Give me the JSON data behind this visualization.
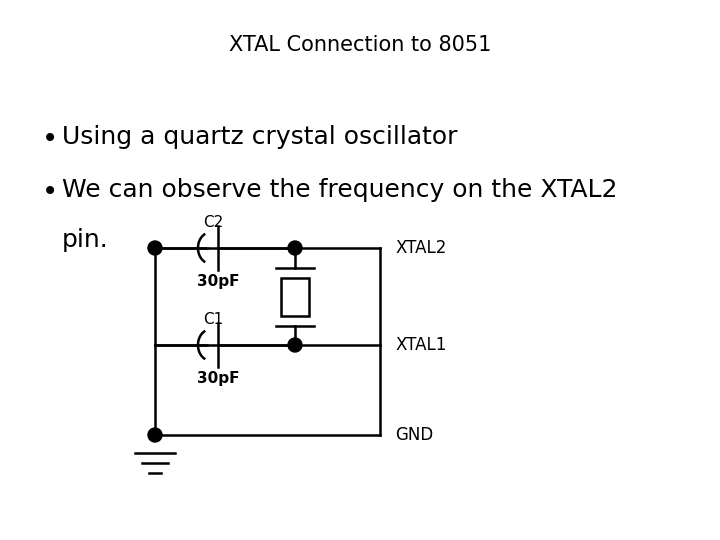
{
  "title": "XTAL Connection to 8051",
  "title_fontsize": 15,
  "bullet1": "Using a quartz crystal oscillator",
  "bullet2": "We can observe the frequency on the XTAL2",
  "bullet2b": "pin.",
  "background_color": "#ffffff",
  "text_color": "#000000",
  "circuit": {
    "c2_label": "C2",
    "c2_val": "30pF",
    "c1_label": "C1",
    "c1_val": "30pF",
    "xtal2_label": "XTAL2",
    "xtal1_label": "XTAL1",
    "gnd_label": "GND"
  }
}
